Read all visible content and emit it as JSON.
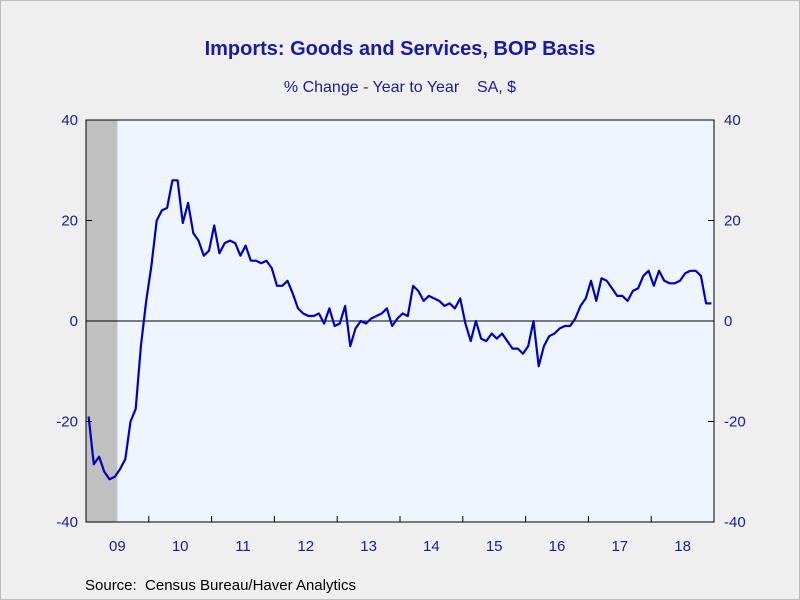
{
  "chart_data": {
    "type": "line",
    "title": "Imports: Goods and Services, BOP Basis",
    "subtitle": "% Change - Year to Year    SA, $",
    "source": "Source:  Census Bureau/Haver Analytics",
    "ylim": [
      -40,
      40
    ],
    "yticks": [
      -40,
      -20,
      0,
      20,
      40
    ],
    "y_tick_labels": [
      "-40",
      "-20",
      "0",
      "20",
      "40"
    ],
    "xlim": [
      2009.0,
      2019.0
    ],
    "x_tick_labels": [
      "09",
      "10",
      "11",
      "12",
      "13",
      "14",
      "15",
      "16",
      "17",
      "18"
    ],
    "right_axis": true,
    "grid": false,
    "zero_line": true,
    "recession_shading": [
      [
        2009.0,
        2009.5
      ]
    ],
    "colors": {
      "line": "#0000c0",
      "text": "#1a1aa6",
      "plot_bg": "#eef5ff",
      "recession": "#c0c0c0"
    },
    "series": [
      {
        "x": [
          2009.0417,
          2009.125,
          2009.2083,
          2009.2917,
          2009.375,
          2009.4583,
          2009.5417,
          2009.625,
          2009.7083,
          2009.7917,
          2009.875,
          2009.9583,
          2010.0417,
          2010.125,
          2010.2083,
          2010.2917,
          2010.375,
          2010.4583,
          2010.5417,
          2010.625,
          2010.7083,
          2010.7917,
          2010.875,
          2010.9583,
          2011.0417,
          2011.125,
          2011.2083,
          2011.2917,
          2011.375,
          2011.4583,
          2011.5417,
          2011.625,
          2011.7083,
          2011.7917,
          2011.875,
          2011.9583,
          2012.0417,
          2012.125,
          2012.2083,
          2012.2917,
          2012.375,
          2012.4583,
          2012.5417,
          2012.625,
          2012.7083,
          2012.7917,
          2012.875,
          2012.9583,
          2013.0417,
          2013.125,
          2013.2083,
          2013.2917,
          2013.375,
          2013.4583,
          2013.5417,
          2013.625,
          2013.7083,
          2013.7917,
          2013.875,
          2013.9583,
          2014.0417,
          2014.125,
          2014.2083,
          2014.2917,
          2014.375,
          2014.4583,
          2014.5417,
          2014.625,
          2014.7083,
          2014.7917,
          2014.875,
          2014.9583,
          2015.0417,
          2015.125,
          2015.2083,
          2015.2917,
          2015.375,
          2015.4583,
          2015.5417,
          2015.625,
          2015.7083,
          2015.7917,
          2015.875,
          2015.9583,
          2016.0417,
          2016.125,
          2016.2083,
          2016.2917,
          2016.375,
          2016.4583,
          2016.5417,
          2016.625,
          2016.7083,
          2016.7917,
          2016.875,
          2016.9583,
          2017.0417,
          2017.125,
          2017.2083,
          2017.2917,
          2017.375,
          2017.4583,
          2017.5417,
          2017.625,
          2017.7083,
          2017.7917,
          2017.875,
          2017.9583,
          2018.0417,
          2018.125,
          2018.2083,
          2018.2917,
          2018.375,
          2018.4583,
          2018.5417,
          2018.625,
          2018.7083,
          2018.7917,
          2018.875,
          2018.9583
        ],
        "values": [
          -19,
          -28.5,
          -27,
          -30,
          -31.5,
          -31,
          -29.5,
          -27.5,
          -20,
          -17.5,
          -5,
          4,
          11,
          20,
          22,
          22.5,
          28,
          28,
          19.5,
          23.5,
          17.5,
          16,
          13,
          14,
          19,
          13.5,
          15.5,
          16,
          15.5,
          13,
          15,
          12,
          12,
          11.5,
          12,
          10.5,
          7,
          7,
          8,
          5.5,
          2.5,
          1.5,
          1,
          1,
          1.5,
          -0.5,
          2.5,
          -1,
          -0.5,
          3,
          -5,
          -1.5,
          0,
          -0.5,
          0.5,
          1,
          1.5,
          2.5,
          -1,
          0.5,
          1.5,
          1,
          7,
          6,
          4,
          5,
          4.5,
          4,
          3,
          3.5,
          2.5,
          4.5,
          -0.5,
          -4,
          0,
          -3.5,
          -4,
          -2.5,
          -3.5,
          -2.5,
          -4,
          -5.5,
          -5.5,
          -6.5,
          -5,
          0,
          -9,
          -5,
          -3,
          -2.5,
          -1.5,
          -1,
          -1,
          0.5,
          3,
          4.5,
          8,
          4,
          8.5,
          8,
          6.5,
          5,
          5,
          4,
          6,
          6.5,
          9,
          10,
          7,
          10,
          8,
          7.5,
          7.5,
          8,
          9.5,
          10,
          10,
          9,
          3.5,
          3.5
        ]
      }
    ]
  }
}
